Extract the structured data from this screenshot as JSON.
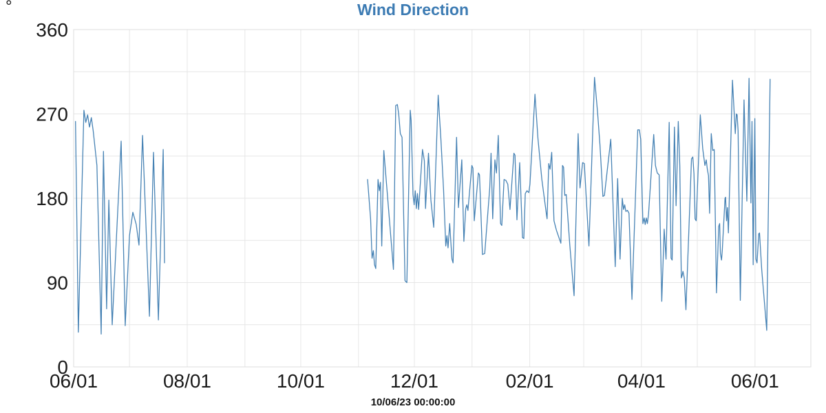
{
  "page": {
    "unit_label": "°"
  },
  "chart_data": {
    "type": "line",
    "title": "Wind Direction",
    "footer_label": "10/06/23 00:00:00",
    "colors": {
      "title": "#3c7bb3",
      "line": "#4682b4",
      "grid": "#e6e6e6",
      "border": "#dcdcdc",
      "tick_text": "#1a1a1a"
    },
    "ylabel": "°",
    "ylim": [
      0,
      360
    ],
    "y_major_ticks": [
      0,
      90,
      180,
      270,
      360
    ],
    "y_grid_step": 45,
    "x_axis": {
      "start_date": "06/01/23",
      "end_date": "07/01/24",
      "total_days": 396,
      "month_gridline_days": [
        0,
        30,
        61,
        92,
        122,
        153,
        183,
        214,
        245,
        274,
        305,
        335,
        366
      ],
      "tick_labels": [
        {
          "day": 0,
          "label": "06/01"
        },
        {
          "day": 61,
          "label": "08/01"
        },
        {
          "day": 122,
          "label": "10/01"
        },
        {
          "day": 183,
          "label": "12/01"
        },
        {
          "day": 245,
          "label": "02/01"
        },
        {
          "day": 305,
          "label": "04/01"
        },
        {
          "day": 366,
          "label": "06/01"
        }
      ]
    },
    "legend": "none",
    "grid": "on",
    "series": [
      {
        "name": "Wind Direction",
        "segments": [
          [
            [
              1,
              262
            ],
            [
              2.5,
              37
            ],
            [
              5.5,
              274
            ],
            [
              6.5,
              261
            ],
            [
              7.5,
              269
            ],
            [
              8.5,
              256
            ],
            [
              9.5,
              266
            ],
            [
              10.5,
              252
            ],
            [
              12.5,
              215
            ],
            [
              14.8,
              35
            ],
            [
              16,
              230
            ],
            [
              17.7,
              62
            ],
            [
              18.9,
              178
            ],
            [
              20.7,
              45
            ],
            [
              25.5,
              241
            ],
            [
              27.7,
              44
            ],
            [
              30,
              140
            ],
            [
              31.8,
              165
            ],
            [
              33.6,
              152
            ],
            [
              35.1,
              130
            ],
            [
              37,
              247
            ],
            [
              40.7,
              54
            ],
            [
              42.9,
              229
            ],
            [
              45.5,
              50
            ],
            [
              48.1,
              232
            ],
            [
              48.8,
              111
            ]
          ],
          [
            [
              157.9,
              200
            ],
            [
              159.5,
              158
            ],
            [
              160.3,
              116
            ],
            [
              161,
              124
            ],
            [
              161.6,
              109
            ],
            [
              162.3,
              105
            ],
            [
              163.5,
              200
            ],
            [
              164.2,
              188
            ],
            [
              164.8,
              197
            ],
            [
              165.5,
              129
            ],
            [
              166.6,
              231
            ],
            [
              171.8,
              104
            ],
            [
              173,
              279
            ],
            [
              173.9,
              280
            ],
            [
              174.6,
              270
            ],
            [
              175.5,
              249
            ],
            [
              176.4,
              245
            ],
            [
              178,
              92
            ],
            [
              179,
              90
            ],
            [
              180.8,
              274
            ],
            [
              181.3,
              263
            ],
            [
              182.3,
              184
            ],
            [
              182.9,
              173
            ],
            [
              183.5,
              188
            ],
            [
              184.1,
              169
            ],
            [
              184.7,
              185
            ],
            [
              185.3,
              168
            ],
            [
              187.4,
              232
            ],
            [
              188.4,
              220
            ],
            [
              189,
              169
            ],
            [
              190.6,
              228
            ],
            [
              191.9,
              178
            ],
            [
              193.4,
              149
            ],
            [
              195.8,
              290
            ],
            [
              197.3,
              242
            ],
            [
              198.7,
              189
            ],
            [
              199.9,
              129
            ],
            [
              200.5,
              140
            ],
            [
              201.1,
              127
            ],
            [
              202,
              153
            ],
            [
              203.2,
              115
            ],
            [
              203.8,
              111
            ],
            [
              205.7,
              245
            ],
            [
              206.7,
              170
            ],
            [
              208.5,
              221
            ],
            [
              209.6,
              134
            ],
            [
              210.6,
              169
            ],
            [
              211.2,
              173
            ],
            [
              211.8,
              167
            ],
            [
              213.9,
              215
            ],
            [
              214.5,
              212
            ],
            [
              215.2,
              156
            ],
            [
              217.4,
              207
            ],
            [
              218,
              205
            ],
            [
              219.6,
              120
            ],
            [
              220.8,
              121
            ],
            [
              223.5,
              191
            ],
            [
              224.2,
              228
            ],
            [
              225.1,
              158
            ],
            [
              226.3,
              221
            ],
            [
              227.1,
              207
            ],
            [
              228.1,
              247
            ],
            [
              229.3,
              153
            ],
            [
              230,
              151
            ],
            [
              231.2,
              200
            ],
            [
              232.2,
              199
            ],
            [
              233.2,
              195
            ],
            [
              234.4,
              168
            ],
            [
              236.5,
              228
            ],
            [
              237.1,
              226
            ],
            [
              238.1,
              157
            ],
            [
              239.6,
              218
            ],
            [
              241.1,
              138
            ],
            [
              241.8,
              137
            ],
            [
              242.6,
              185
            ],
            [
              243.5,
              188
            ],
            [
              244.5,
              186
            ],
            [
              245.1,
              195
            ],
            [
              247.8,
              291
            ],
            [
              249.4,
              244
            ],
            [
              251.5,
              200
            ],
            [
              254,
              162
            ],
            [
              254.3,
              158
            ],
            [
              255.2,
              217
            ],
            [
              255.9,
              211
            ],
            [
              256.8,
              229
            ],
            [
              258,
              156
            ],
            [
              259.3,
              146
            ],
            [
              261.7,
              132
            ],
            [
              262.6,
              215
            ],
            [
              263.2,
              213
            ],
            [
              263.8,
              183
            ],
            [
              264.6,
              184
            ],
            [
              266.5,
              130
            ],
            [
              268.8,
              76
            ],
            [
              271,
              249
            ],
            [
              272,
              191
            ],
            [
              273.4,
              218
            ],
            [
              274.3,
              217
            ],
            [
              276.8,
              129
            ],
            [
              279.8,
              309
            ],
            [
              281.4,
              272
            ],
            [
              282.7,
              237
            ],
            [
              284.3,
              182
            ],
            [
              285.1,
              183
            ],
            [
              288.5,
              243
            ],
            [
              290.9,
              107
            ],
            [
              292.2,
              201
            ],
            [
              293.5,
              115
            ],
            [
              294.7,
              180
            ],
            [
              295.4,
              168
            ],
            [
              296,
              173
            ],
            [
              296.6,
              166
            ],
            [
              297.5,
              167
            ],
            [
              298.3,
              164
            ],
            [
              299.9,
              72
            ],
            [
              303,
              253
            ],
            [
              303.9,
              253
            ],
            [
              304.6,
              243
            ],
            [
              305.8,
              153
            ],
            [
              306.5,
              159
            ],
            [
              307,
              152
            ],
            [
              307.6,
              159
            ],
            [
              308.2,
              153
            ],
            [
              308.8,
              163
            ],
            [
              311.6,
              248
            ],
            [
              312.5,
              215
            ],
            [
              313.5,
              207
            ],
            [
              314.5,
              205
            ],
            [
              315.9,
              70
            ],
            [
              317.2,
              147
            ],
            [
              318.2,
              115
            ],
            [
              319.9,
              261
            ],
            [
              320.9,
              116
            ],
            [
              321.5,
              114
            ],
            [
              322.7,
              256
            ],
            [
              323.6,
              172
            ],
            [
              324.8,
              262
            ],
            [
              325.6,
              215
            ],
            [
              326.4,
              95
            ],
            [
              326.8,
              97
            ],
            [
              327.3,
              102
            ],
            [
              328,
              95
            ],
            [
              328.9,
              61
            ],
            [
              331.9,
              222
            ],
            [
              332.6,
              224
            ],
            [
              333.2,
              206
            ],
            [
              333.8,
              158
            ],
            [
              334.4,
              156
            ],
            [
              336.6,
              269
            ],
            [
              337.9,
              233
            ],
            [
              339.1,
              215
            ],
            [
              339.8,
              221
            ],
            [
              340.4,
              211
            ],
            [
              341,
              204
            ],
            [
              341.6,
              164
            ],
            [
              342.5,
              249
            ],
            [
              343.3,
              231
            ],
            [
              344.1,
              232
            ],
            [
              345.3,
              79
            ],
            [
              346.5,
              150
            ],
            [
              347,
              153
            ],
            [
              347.4,
              121
            ],
            [
              348,
              114
            ],
            [
              348.4,
              124
            ],
            [
              349.9,
              180
            ],
            [
              350.2,
              181
            ],
            [
              350.7,
              156
            ],
            [
              351.2,
              170
            ],
            [
              351.7,
              143
            ],
            [
              353.9,
              306
            ],
            [
              355.4,
              249
            ],
            [
              356,
              270
            ],
            [
              356.4,
              269
            ],
            [
              356.9,
              252
            ],
            [
              358.1,
              71
            ],
            [
              360.1,
              285
            ],
            [
              361.6,
              177
            ],
            [
              362.8,
              308
            ],
            [
              363.8,
              175
            ],
            [
              364.4,
              262
            ],
            [
              365,
              109
            ],
            [
              365.9,
              265
            ],
            [
              366.5,
              115
            ],
            [
              367.1,
              111
            ],
            [
              368,
              142
            ],
            [
              368.4,
              143
            ],
            [
              369.6,
              104
            ],
            [
              372.3,
              39
            ],
            [
              374.1,
              307
            ]
          ]
        ]
      }
    ]
  }
}
